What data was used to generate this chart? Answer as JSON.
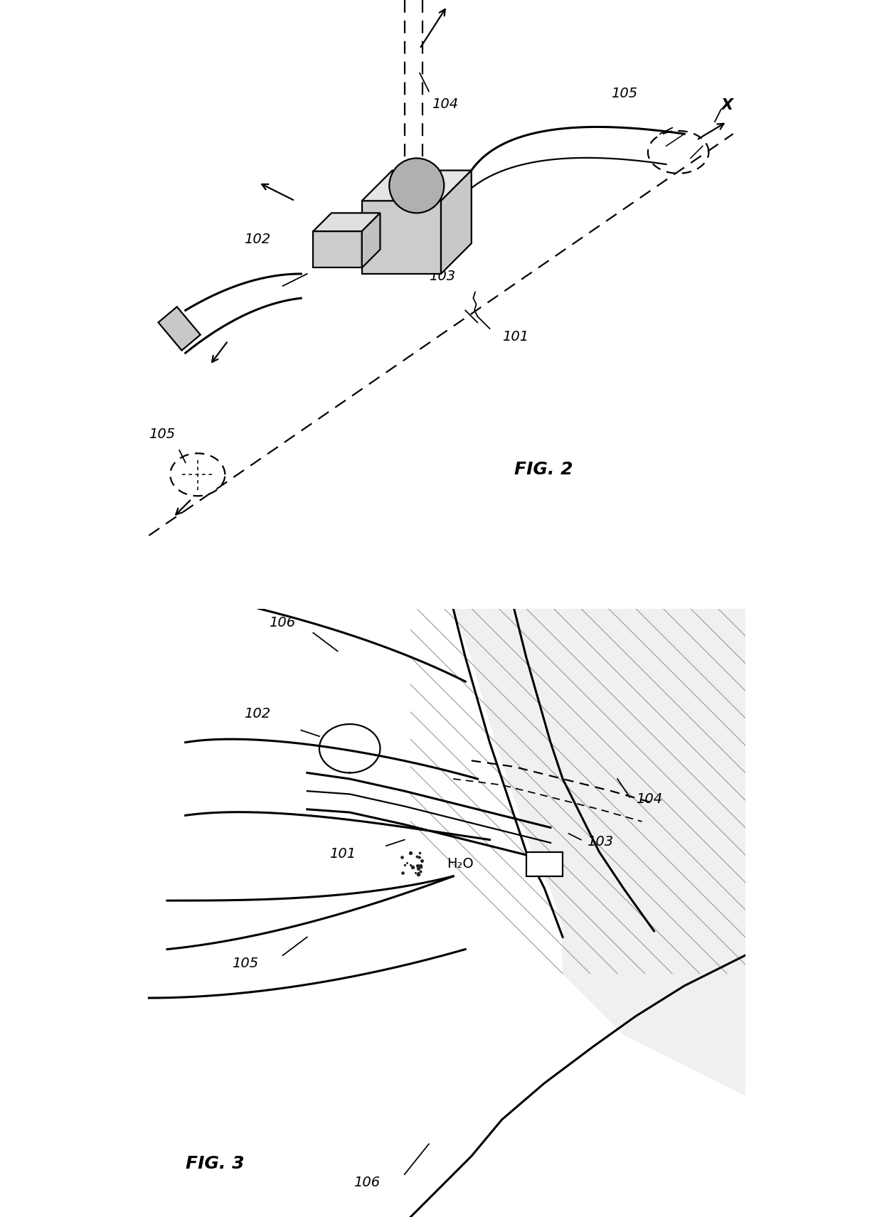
{
  "fig_width": 12.4,
  "fig_height": 17.11,
  "bg": "#ffffff",
  "lc": "#000000",
  "lw": 1.6,
  "lw2": 2.2,
  "fig2_label": "FIG. 2",
  "fig3_label": "FIG. 3",
  "label_101": "101",
  "label_102": "102",
  "label_103": "103",
  "label_104": "104",
  "label_105": "105",
  "label_106": "106",
  "label_X": "X",
  "label_H2O": "H₂O"
}
